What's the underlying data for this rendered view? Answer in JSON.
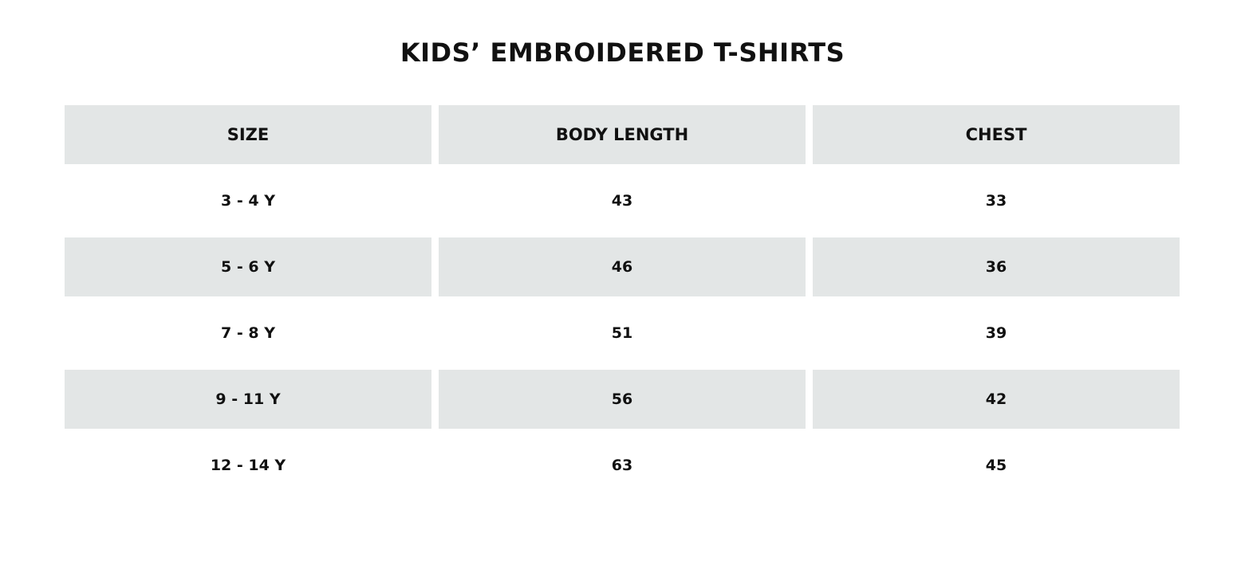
{
  "title": "KIDS’ EMBROIDERED T-SHIRTS",
  "table": {
    "headers": [
      "SIZE",
      "BODY LENGTH",
      "CHEST"
    ],
    "rows": [
      [
        "3 - 4 Y",
        "43",
        "33"
      ],
      [
        "5 - 6 Y",
        "46",
        "36"
      ],
      [
        "7 - 8 Y",
        "51",
        "39"
      ],
      [
        "9 - 11 Y",
        "56",
        "42"
      ],
      [
        "12 - 14 Y",
        "63",
        "45"
      ]
    ]
  }
}
